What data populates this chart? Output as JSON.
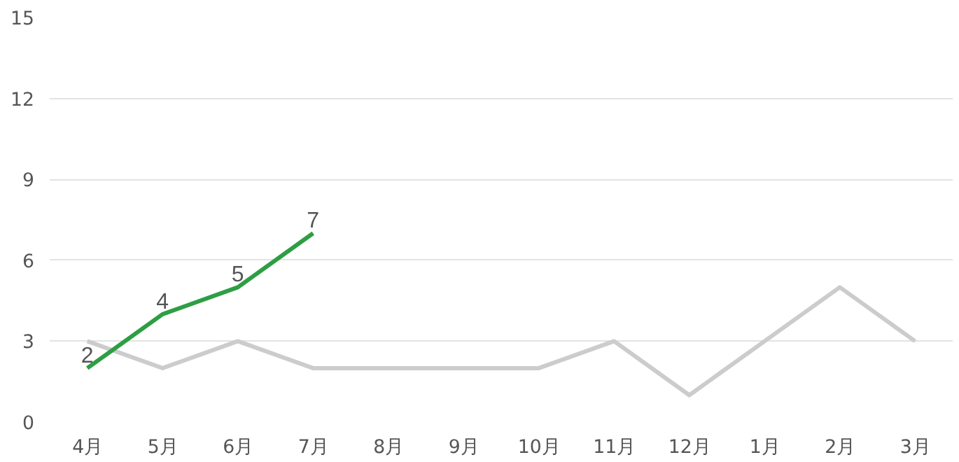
{
  "chart_data": {
    "type": "line",
    "categories": [
      "4月",
      "5月",
      "6月",
      "7月",
      "8月",
      "9月",
      "10月",
      "11月",
      "12月",
      "1月",
      "2月",
      "3月"
    ],
    "series": [
      {
        "color": "#cccccc",
        "values": [
          3,
          2,
          3,
          2,
          2,
          2,
          2,
          3,
          1,
          3,
          5,
          3
        ]
      },
      {
        "color": "#2e9e44",
        "values": [
          2,
          4,
          5,
          7,
          null,
          null,
          null,
          null,
          null,
          null,
          null,
          null
        ],
        "value_labels": [
          "2",
          "4",
          "5",
          "7",
          null,
          null,
          null,
          null,
          null,
          null,
          null,
          null
        ]
      }
    ],
    "ylim": [
      0,
      15
    ],
    "yticks": [
      0,
      3,
      6,
      9,
      12,
      15
    ],
    "grid": "y",
    "marker": "none",
    "line_style": "solid"
  }
}
